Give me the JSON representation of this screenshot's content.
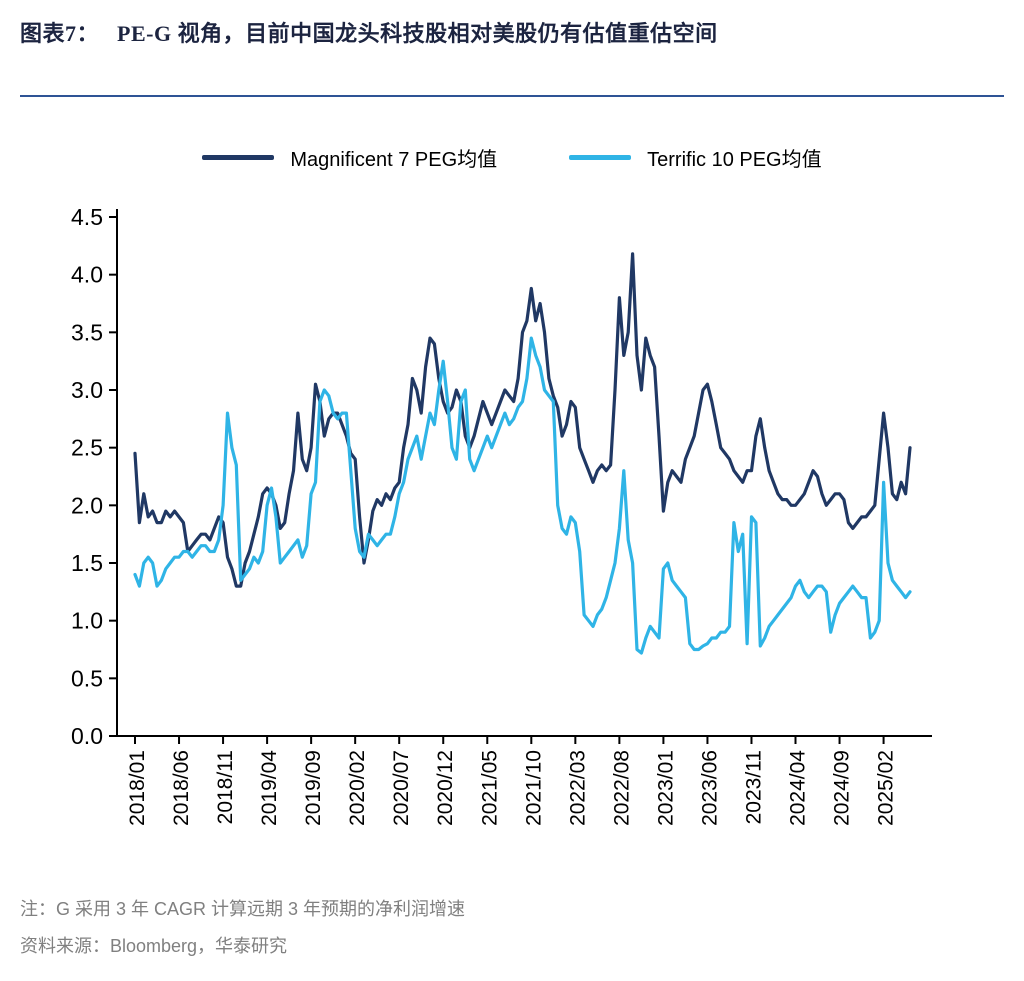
{
  "header": {
    "label": "图表7：",
    "title": "PE-G 视角，目前中国龙头科技股相对美股仍有估值重估空间"
  },
  "footnotes": {
    "note": "注：G 采用 3 年 CAGR 计算远期 3 年预期的净利润增速",
    "source": "资料来源：Bloomberg，华泰研究"
  },
  "colors": {
    "navy": "#203864",
    "lightblue": "#2fb4e6",
    "rule_blue": "#2e5395",
    "axis": "#000000",
    "footnote_gray": "#808080"
  },
  "chart_data": {
    "type": "line",
    "title": "",
    "xlabel": "",
    "ylabel": "",
    "grid": false,
    "legend_position": "top",
    "ylim": [
      0,
      4.5
    ],
    "yticks": [
      "0.0",
      "0.5",
      "1.0",
      "1.5",
      "2.0",
      "2.5",
      "3.0",
      "3.5",
      "4.0",
      "4.5"
    ],
    "x_unit": "month",
    "x_start": "2018/01",
    "x_end": "2025/05",
    "points_per_month": 2,
    "xtick_labels": [
      "2018/01",
      "2018/06",
      "2018/11",
      "2019/04",
      "2019/09",
      "2020/02",
      "2020/07",
      "2020/12",
      "2021/05",
      "2021/10",
      "2022/03",
      "2022/08",
      "2023/01",
      "2023/06",
      "2023/11",
      "2024/04",
      "2024/09",
      "2025/02"
    ],
    "xtick_month_index": [
      0,
      5,
      10,
      15,
      20,
      25,
      30,
      35,
      40,
      45,
      50,
      55,
      60,
      65,
      70,
      75,
      80,
      85
    ],
    "series": [
      {
        "name": "Magnificent 7 PEG均值",
        "color": "#203864",
        "values": [
          2.45,
          1.85,
          2.1,
          1.9,
          1.95,
          1.85,
          1.85,
          1.95,
          1.9,
          1.95,
          1.9,
          1.85,
          1.6,
          1.65,
          1.7,
          1.75,
          1.75,
          1.7,
          1.8,
          1.9,
          1.85,
          1.55,
          1.45,
          1.3,
          1.3,
          1.5,
          1.6,
          1.75,
          1.9,
          2.1,
          2.15,
          2.1,
          2.0,
          1.8,
          1.85,
          2.1,
          2.3,
          2.8,
          2.4,
          2.3,
          2.5,
          3.05,
          2.9,
          2.6,
          2.75,
          2.8,
          2.8,
          2.7,
          2.6,
          2.45,
          2.4,
          1.9,
          1.5,
          1.7,
          1.95,
          2.05,
          2.0,
          2.1,
          2.05,
          2.15,
          2.2,
          2.5,
          2.7,
          3.1,
          3.0,
          2.8,
          3.2,
          3.45,
          3.4,
          3.1,
          2.9,
          2.8,
          2.85,
          3.0,
          2.9,
          2.6,
          2.5,
          2.6,
          2.75,
          2.9,
          2.8,
          2.7,
          2.8,
          2.9,
          3.0,
          2.95,
          2.9,
          3.1,
          3.5,
          3.6,
          3.88,
          3.6,
          3.75,
          3.5,
          3.1,
          2.95,
          2.85,
          2.6,
          2.7,
          2.9,
          2.85,
          2.5,
          2.4,
          2.3,
          2.2,
          2.3,
          2.35,
          2.3,
          2.35,
          3.0,
          3.8,
          3.3,
          3.5,
          4.18,
          3.3,
          3.0,
          3.45,
          3.3,
          3.2,
          2.6,
          1.95,
          2.2,
          2.3,
          2.25,
          2.2,
          2.4,
          2.5,
          2.6,
          2.8,
          3.0,
          3.05,
          2.9,
          2.7,
          2.5,
          2.45,
          2.4,
          2.3,
          2.25,
          2.2,
          2.3,
          2.3,
          2.6,
          2.75,
          2.5,
          2.3,
          2.2,
          2.1,
          2.05,
          2.05,
          2.0,
          2.0,
          2.05,
          2.1,
          2.2,
          2.3,
          2.25,
          2.1,
          2.0,
          2.05,
          2.1,
          2.1,
          2.05,
          1.85,
          1.8,
          1.85,
          1.9,
          1.9,
          1.95,
          2.0,
          2.4,
          2.8,
          2.5,
          2.1,
          2.05,
          2.2,
          2.1,
          2.5
        ]
      },
      {
        "name": "Terrific 10 PEG均值",
        "color": "#2fb4e6",
        "values": [
          1.4,
          1.3,
          1.5,
          1.55,
          1.5,
          1.3,
          1.35,
          1.45,
          1.5,
          1.55,
          1.55,
          1.6,
          1.6,
          1.55,
          1.6,
          1.65,
          1.65,
          1.6,
          1.6,
          1.7,
          2.0,
          2.8,
          2.5,
          2.35,
          1.35,
          1.4,
          1.45,
          1.55,
          1.5,
          1.6,
          2.0,
          2.15,
          1.9,
          1.5,
          1.55,
          1.6,
          1.65,
          1.7,
          1.55,
          1.65,
          2.1,
          2.2,
          2.9,
          3.0,
          2.95,
          2.8,
          2.75,
          2.8,
          2.8,
          2.3,
          1.8,
          1.6,
          1.55,
          1.75,
          1.7,
          1.65,
          1.7,
          1.75,
          1.75,
          1.9,
          2.1,
          2.2,
          2.4,
          2.5,
          2.6,
          2.4,
          2.6,
          2.8,
          2.7,
          3.0,
          3.25,
          2.9,
          2.5,
          2.4,
          2.9,
          3.0,
          2.4,
          2.3,
          2.4,
          2.5,
          2.6,
          2.5,
          2.6,
          2.7,
          2.8,
          2.7,
          2.75,
          2.85,
          2.9,
          3.1,
          3.45,
          3.3,
          3.2,
          3.0,
          2.95,
          2.9,
          2.0,
          1.8,
          1.75,
          1.9,
          1.85,
          1.6,
          1.05,
          1.0,
          0.95,
          1.05,
          1.1,
          1.2,
          1.35,
          1.5,
          1.8,
          2.3,
          1.7,
          1.5,
          0.75,
          0.72,
          0.85,
          0.95,
          0.9,
          0.85,
          1.45,
          1.5,
          1.35,
          1.3,
          1.25,
          1.2,
          0.8,
          0.75,
          0.75,
          0.78,
          0.8,
          0.85,
          0.85,
          0.9,
          0.9,
          0.95,
          1.85,
          1.6,
          1.75,
          0.8,
          1.9,
          1.85,
          0.78,
          0.85,
          0.95,
          1.0,
          1.05,
          1.1,
          1.15,
          1.2,
          1.3,
          1.35,
          1.25,
          1.2,
          1.25,
          1.3,
          1.3,
          1.25,
          0.9,
          1.05,
          1.15,
          1.2,
          1.25,
          1.3,
          1.25,
          1.2,
          1.2,
          0.85,
          0.9,
          1.0,
          2.2,
          1.5,
          1.35,
          1.3,
          1.25,
          1.2,
          1.25
        ]
      }
    ]
  }
}
